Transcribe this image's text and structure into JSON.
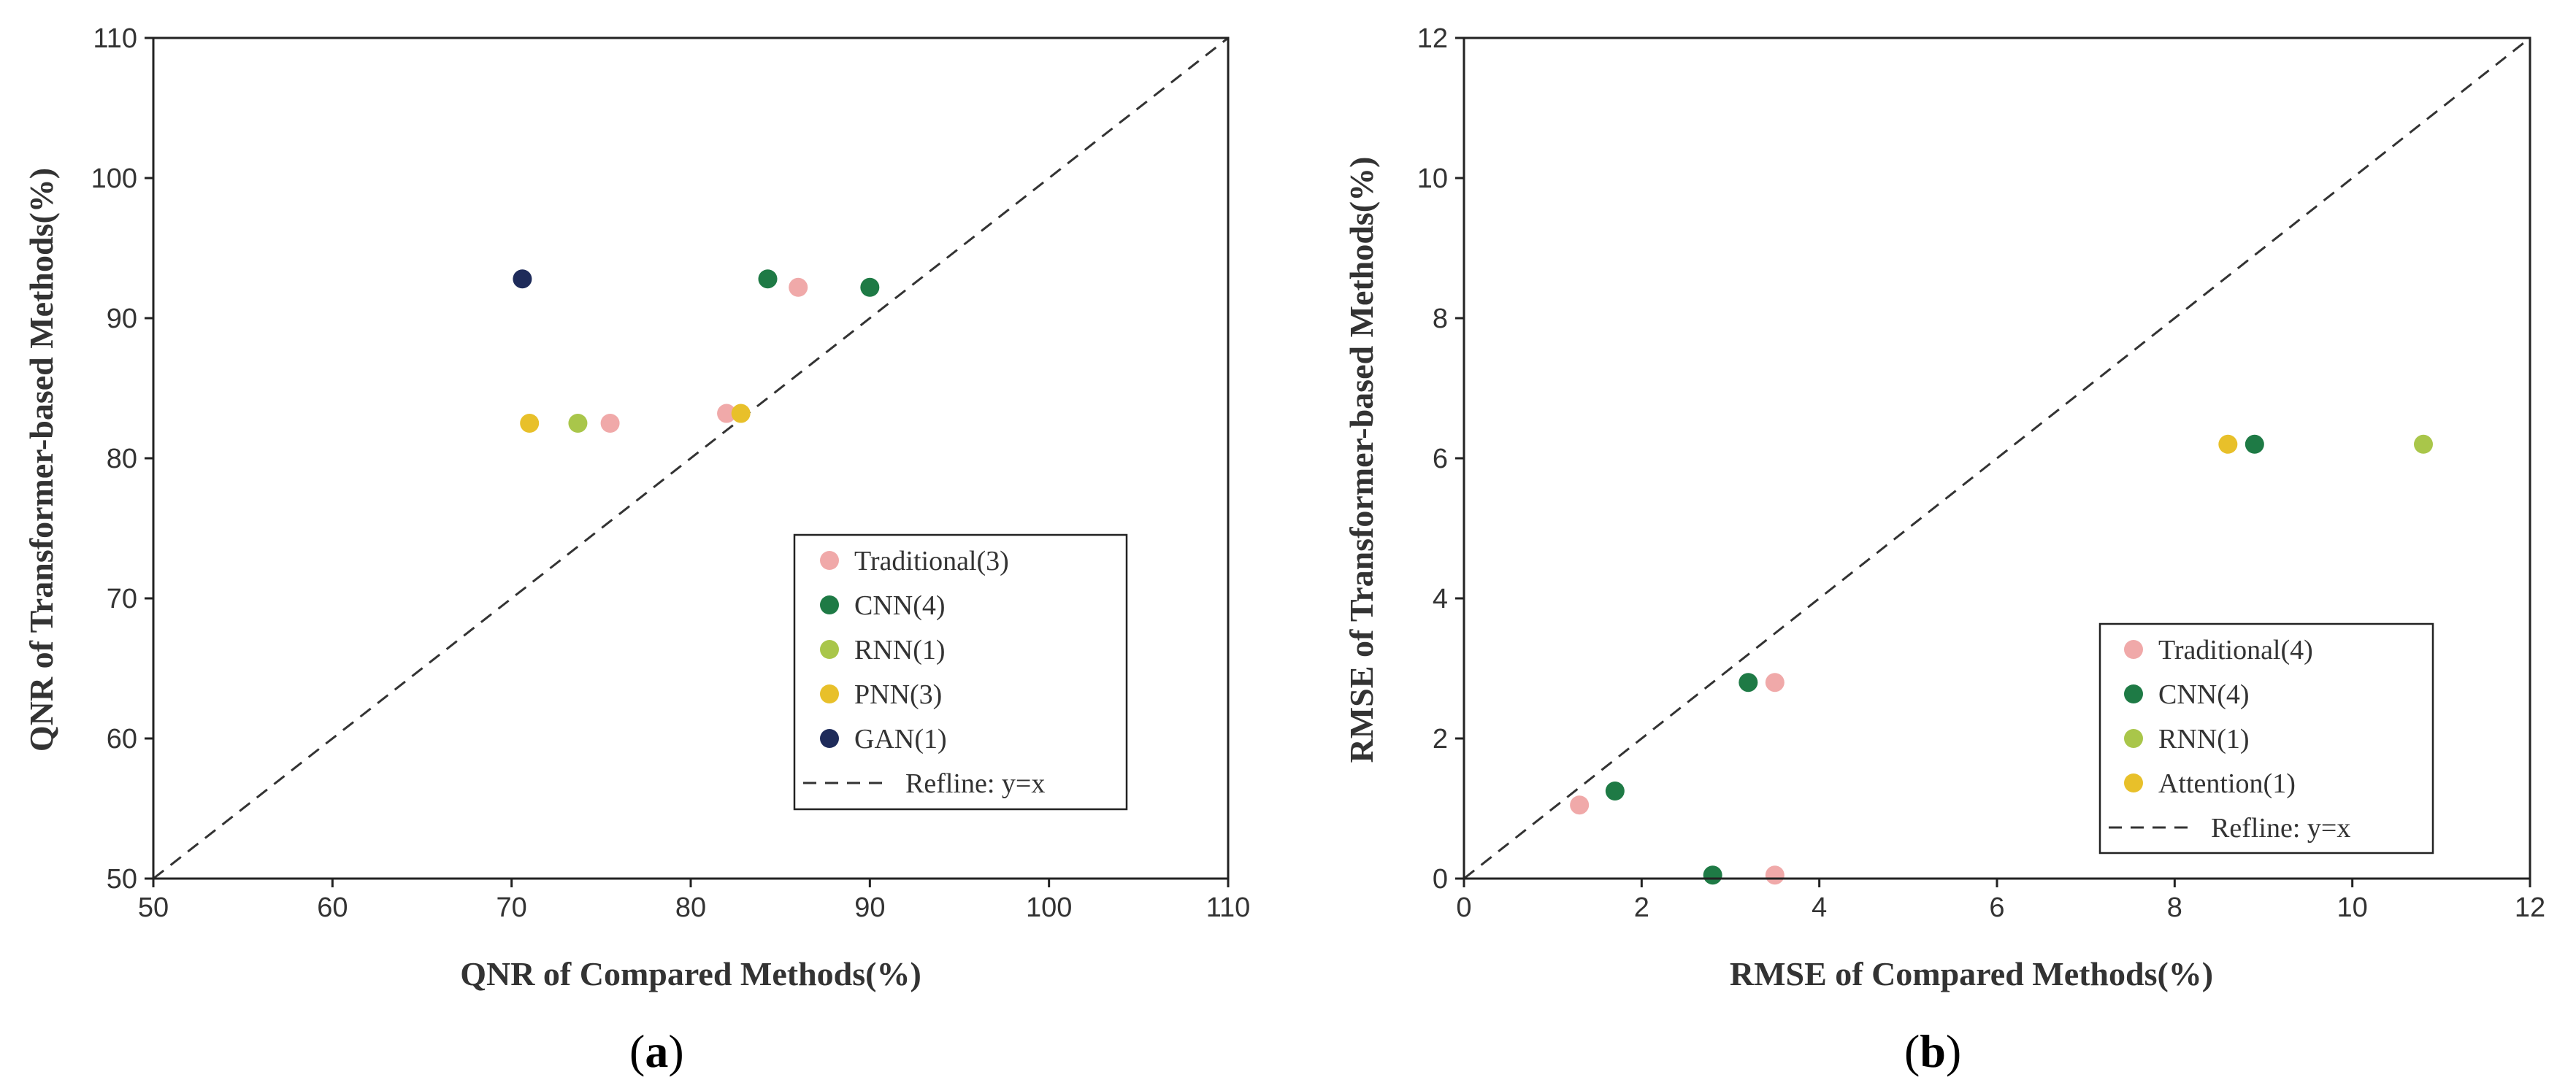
{
  "chart_data": [
    {
      "type": "scatter",
      "panel": "a",
      "caption_open": "(",
      "caption_letter": "a",
      "caption_close": ")",
      "xlabel": "QNR of Compared Methods(%)",
      "ylabel": "QNR of Transformer-based Methods(%)",
      "xlim": [
        50,
        110
      ],
      "ylim": [
        50,
        110
      ],
      "xticks": [
        50,
        60,
        70,
        80,
        90,
        100,
        110
      ],
      "yticks": [
        50,
        60,
        70,
        80,
        90,
        100,
        110
      ],
      "legend_position": "lower-right",
      "series": [
        {
          "name": "Traditional(3)",
          "color": "#f0a9a9",
          "points": [
            [
              86.0,
              92.2
            ],
            [
              75.5,
              82.5
            ],
            [
              82.0,
              83.2
            ]
          ]
        },
        {
          "name": "CNN(4)",
          "color": "#1e7a45",
          "points": [
            [
              84.3,
              92.8
            ],
            [
              90.0,
              92.2
            ]
          ]
        },
        {
          "name": "RNN(1)",
          "color": "#a9c64a",
          "points": [
            [
              73.7,
              82.5
            ]
          ]
        },
        {
          "name": "PNN(3)",
          "color": "#e8c02a",
          "points": [
            [
              71.0,
              82.5
            ],
            [
              82.8,
              83.2
            ]
          ]
        },
        {
          "name": "GAN(1)",
          "color": "#1e2b5a",
          "points": [
            [
              70.6,
              92.8
            ]
          ]
        }
      ],
      "refline_label": "Refline: y=x"
    },
    {
      "type": "scatter",
      "panel": "b",
      "caption_open": "(",
      "caption_letter": "b",
      "caption_close": ")",
      "xlabel": "RMSE of Compared Methods(%)",
      "ylabel": "RMSE of Transformer-based Methods(%)",
      "xlim": [
        0,
        12
      ],
      "ylim": [
        0,
        12
      ],
      "xticks": [
        0,
        2,
        4,
        6,
        8,
        10,
        12
      ],
      "yticks": [
        0,
        2,
        4,
        6,
        8,
        10,
        12
      ],
      "legend_position": "lower-right",
      "series": [
        {
          "name": "Traditional(4)",
          "color": "#f0a9a9",
          "points": [
            [
              1.3,
              1.05
            ],
            [
              3.5,
              2.8
            ],
            [
              3.5,
              0.05
            ]
          ]
        },
        {
          "name": "CNN(4)",
          "color": "#1e7a45",
          "points": [
            [
              1.7,
              1.25
            ],
            [
              3.2,
              2.8
            ],
            [
              2.8,
              0.05
            ],
            [
              8.9,
              6.2
            ]
          ]
        },
        {
          "name": "RNN(1)",
          "color": "#a9c64a",
          "points": [
            [
              10.8,
              6.2
            ]
          ]
        },
        {
          "name": "Attention(1)",
          "color": "#e8c02a",
          "points": [
            [
              8.6,
              6.2
            ]
          ]
        }
      ],
      "refline_label": "Refline: y=x"
    }
  ]
}
